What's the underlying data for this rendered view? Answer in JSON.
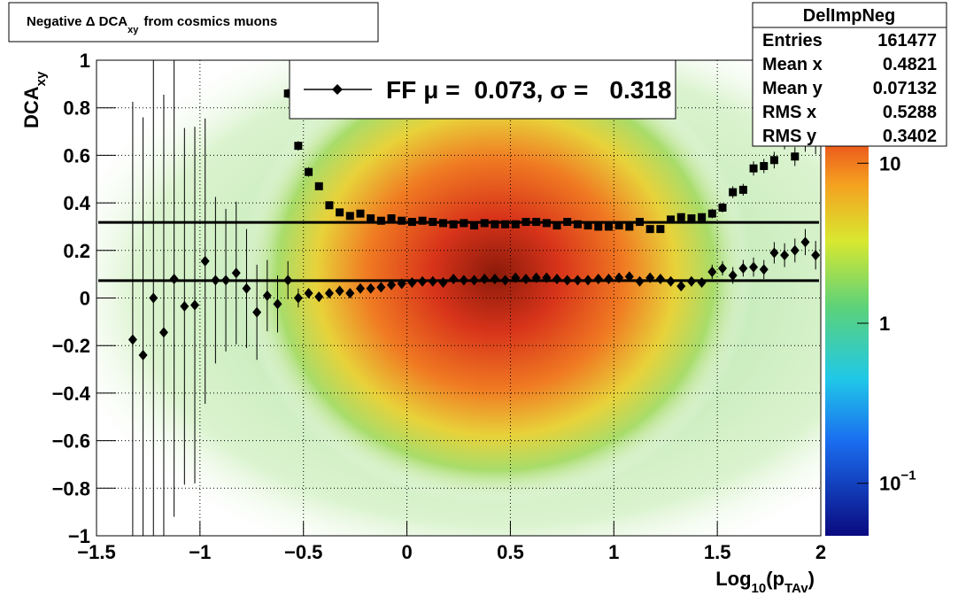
{
  "chart_data": {
    "type": "profile",
    "title": {
      "text": "Negative Δ DCA",
      "sub": "xy",
      "rest": "from cosmics muons"
    },
    "x_label": {
      "text": "Log",
      "sub": "10",
      "mid": "(p",
      "sub2": "TAv",
      "end": ")"
    },
    "y_label": {
      "text": "DCA",
      "sub": "xy"
    },
    "xlim": [
      -1.5,
      2
    ],
    "ylim": [
      -1,
      1
    ],
    "xticks": [
      {
        "value": -1.5,
        "label": "−1.5"
      },
      {
        "value": -1,
        "label": "−1"
      },
      {
        "value": -0.5,
        "label": "−0.5"
      },
      0,
      0.5,
      1,
      1.5,
      2
    ],
    "yticks": [
      {
        "value": -1,
        "label": "−1"
      },
      {
        "value": -0.8,
        "label": "−0.8"
      },
      {
        "value": -0.6,
        "label": "−0.6"
      },
      {
        "value": -0.4,
        "label": "−0.4"
      },
      {
        "value": -0.2,
        "label": "−0.2"
      },
      0,
      0.2,
      0.4,
      0.6,
      0.8,
      1
    ],
    "grid": true,
    "zlim": [
      0.047,
      44
    ],
    "zlog": true,
    "zticks": [
      {
        "value": 0.1,
        "label": "10",
        "superscript": "−1"
      },
      1,
      10
    ],
    "x": [
      -1.325,
      -1.275,
      -1.225,
      -1.175,
      -1.125,
      -1.075,
      -1.025,
      -0.975,
      -0.925,
      -0.875,
      -0.825,
      -0.775,
      -0.725,
      -0.675,
      -0.625,
      -0.575,
      -0.525,
      -0.475,
      -0.425,
      -0.375,
      -0.325,
      -0.275,
      -0.225,
      -0.175,
      -0.125,
      -0.075,
      -0.025,
      0.025,
      0.075,
      0.125,
      0.175,
      0.225,
      0.275,
      0.325,
      0.375,
      0.425,
      0.475,
      0.525,
      0.575,
      0.625,
      0.675,
      0.725,
      0.775,
      0.825,
      0.875,
      0.925,
      0.975,
      1.025,
      1.075,
      1.125,
      1.175,
      1.225,
      1.275,
      1.325,
      1.375,
      1.425,
      1.475,
      1.525,
      1.575,
      1.625,
      1.675,
      1.725,
      1.775,
      1.825,
      1.875,
      1.925,
      1.975
    ],
    "series": [
      {
        "marker": "diamond",
        "color": "#000000",
        "values": [
          -0.175,
          -0.24,
          0,
          -0.145,
          0.08,
          -0.035,
          -0.03,
          0.155,
          0.075,
          0.075,
          0.105,
          0.04,
          -0.06,
          0.01,
          -0.025,
          0.075,
          0,
          0.02,
          0.005,
          0.02,
          0.03,
          0.02,
          0.04,
          0.04,
          0.045,
          0.055,
          0.06,
          0.065,
          0.07,
          0.07,
          0.065,
          0.08,
          0.075,
          0.075,
          0.08,
          0.08,
          0.075,
          0.085,
          0.08,
          0.085,
          0.085,
          0.08,
          0.075,
          0.075,
          0.075,
          0.08,
          0.08,
          0.085,
          0.09,
          0.07,
          0.085,
          0.08,
          0.07,
          0.05,
          0.07,
          0.065,
          0.11,
          0.125,
          0.095,
          0.125,
          0.13,
          0.12,
          0.19,
          0.18,
          0.2,
          0.235,
          0.18
        ],
        "errors": [
          1,
          1,
          1,
          1,
          1,
          0.75,
          0.75,
          0.6,
          0.35,
          0.3,
          0.3,
          0.25,
          0.2,
          0.15,
          0.12,
          0.08,
          0.04,
          0.02,
          0.02,
          0.02,
          0.02,
          0.02,
          0.02,
          0.02,
          0.02,
          0.02,
          0.02,
          0.02,
          0.02,
          0.02,
          0.02,
          0.02,
          0.02,
          0.02,
          0.02,
          0.02,
          0.02,
          0.02,
          0.02,
          0.02,
          0.02,
          0.02,
          0.02,
          0.02,
          0.02,
          0.02,
          0.02,
          0.02,
          0.02,
          0.02,
          0.02,
          0.02,
          0.02,
          0.02,
          0.02,
          0.02,
          0.03,
          0.03,
          0.035,
          0.035,
          0.04,
          0.04,
          0.045,
          0.05,
          0.05,
          0.055,
          0.06
        ]
      },
      {
        "marker": "square",
        "color": "#000000",
        "values": [
          null,
          null,
          null,
          null,
          null,
          null,
          null,
          null,
          null,
          null,
          null,
          null,
          null,
          null,
          null,
          0.86,
          0.64,
          0.53,
          0.47,
          0.39,
          0.36,
          0.345,
          0.355,
          0.335,
          0.325,
          0.335,
          0.325,
          0.32,
          0.325,
          0.32,
          0.315,
          0.31,
          0.315,
          0.305,
          0.315,
          0.31,
          0.31,
          0.31,
          0.32,
          0.32,
          0.315,
          0.305,
          0.32,
          0.31,
          0.305,
          0.3,
          0.3,
          0.305,
          0.3,
          0.32,
          0.29,
          0.29,
          0.33,
          0.34,
          0.335,
          0.34,
          0.355,
          0.38,
          0.445,
          0.455,
          0.545,
          0.555,
          0.58,
          0.665,
          0.595,
          0.66,
          0.655
        ],
        "errors": [
          null,
          null,
          null,
          null,
          null,
          null,
          null,
          null,
          null,
          null,
          null,
          null,
          null,
          null,
          null,
          0.02,
          0.02,
          0.02,
          0.01,
          0.01,
          0.01,
          0.01,
          0.01,
          0.01,
          0.01,
          0.01,
          0.01,
          0.01,
          0.01,
          0.01,
          0.01,
          0.01,
          0.01,
          0.01,
          0.01,
          0.01,
          0.01,
          0.01,
          0.01,
          0.01,
          0.01,
          0.01,
          0.01,
          0.01,
          0.01,
          0.01,
          0.01,
          0.01,
          0.01,
          0.01,
          0.01,
          0.01,
          0.01,
          0.01,
          0.01,
          0.01,
          0.02,
          0.02,
          0.025,
          0.025,
          0.03,
          0.03,
          0.035,
          0.04,
          0.04,
          0.045,
          0.05
        ]
      }
    ],
    "fit": {
      "name": "FF",
      "mu_label": "μ =",
      "mu": 0.073,
      "sigma_label": ", σ =",
      "sigma": 0.318
    },
    "stats": {
      "title": "DelImpNeg",
      "rows": [
        [
          "Entries",
          161477
        ],
        [
          "Mean x",
          0.4821
        ],
        [
          "Mean y",
          0.07132
        ],
        [
          "RMS x",
          0.5288
        ],
        [
          "RMS y",
          0.3402
        ]
      ]
    }
  }
}
